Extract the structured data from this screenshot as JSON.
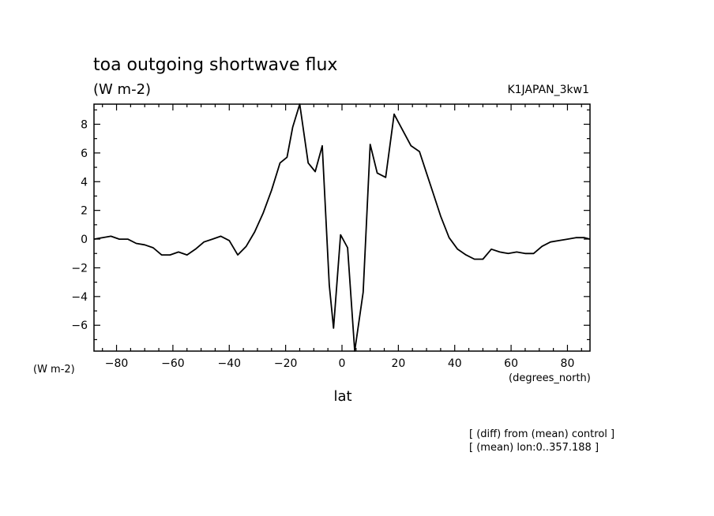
{
  "chart_data": {
    "type": "line",
    "title": "toa outgoing shortwave flux",
    "units": "(W m-2)",
    "experiment": "K1JAPAN_3kw1",
    "y_unit_label": "(W m-2)",
    "x_unit_label": "(degrees_north)",
    "xlabel": "lat",
    "notes": [
      "[ (diff) from (mean) control ]",
      "[ (mean) lon:0..357.188 ]"
    ],
    "xlim": [
      -88,
      88
    ],
    "ylim": [
      -7.8,
      9.4
    ],
    "x_ticks": [
      -80,
      -60,
      -40,
      -20,
      0,
      20,
      40,
      60,
      80
    ],
    "x_tick_labels": [
      "−80",
      "−60",
      "−40",
      "−20",
      "0",
      "20",
      "40",
      "60",
      "80"
    ],
    "y_ticks": [
      -6,
      -4,
      -2,
      0,
      2,
      4,
      6,
      8
    ],
    "y_tick_labels": [
      "−6",
      "−4",
      "−2",
      "0",
      "2",
      "4",
      "6",
      "8"
    ],
    "grid": false,
    "series": [
      {
        "x": [
          -88,
          -85,
          -82,
          -79,
          -76,
          -73,
          -70,
          -67,
          -64,
          -61,
          -58,
          -55,
          -52,
          -49,
          -46,
          -43,
          -40,
          -37,
          -34,
          -31,
          -28,
          -25,
          -22,
          -19.5,
          -17.5,
          -15,
          -12,
          -9.5,
          -7,
          -4.5,
          -3,
          -0.5,
          2,
          4.5,
          7.5,
          10,
          12.5,
          15.5,
          18.5,
          21.5,
          24.5,
          27.5,
          30,
          32.5,
          35,
          38,
          41,
          44,
          47,
          50,
          53,
          56,
          59,
          62,
          65,
          68,
          71,
          74,
          77,
          80,
          83,
          86,
          88
        ],
        "y": [
          0.0,
          0.1,
          0.2,
          0.0,
          0.0,
          -0.3,
          -0.4,
          -0.6,
          -1.1,
          -1.1,
          -0.9,
          -1.1,
          -0.7,
          -0.2,
          0.0,
          0.2,
          -0.1,
          -1.1,
          -0.5,
          0.5,
          1.8,
          3.4,
          5.3,
          5.7,
          7.8,
          9.4,
          5.3,
          4.7,
          6.5,
          -3.2,
          -6.2,
          0.3,
          -0.6,
          -7.8,
          -3.7,
          6.6,
          4.6,
          4.3,
          8.7,
          7.6,
          6.5,
          6.1,
          4.6,
          3.1,
          1.6,
          0.1,
          -0.7,
          -1.1,
          -1.4,
          -1.4,
          -0.7,
          -0.9,
          -1.0,
          -0.9,
          -1.0,
          -1.0,
          -0.5,
          -0.2,
          -0.1,
          0.0,
          0.1,
          0.1,
          0.0
        ]
      }
    ]
  }
}
